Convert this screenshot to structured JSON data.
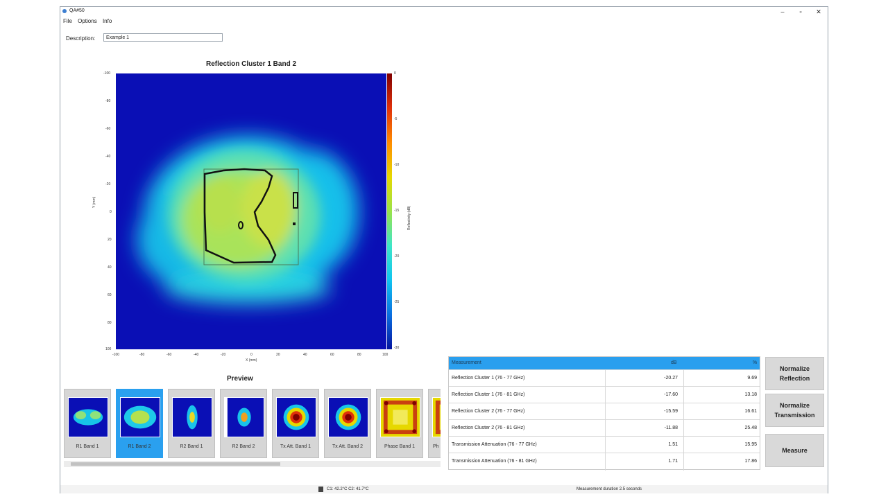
{
  "window": {
    "title": "QA#50",
    "controls": [
      "–",
      "▫",
      "✕"
    ]
  },
  "menu": [
    "File",
    "Options",
    "Info"
  ],
  "description": {
    "label": "Description:",
    "value": "Example 1"
  },
  "plot": {
    "title": "Reflection Cluster 1 Band 2",
    "x_ticks": [
      "-100",
      "-80",
      "-60",
      "-40",
      "-20",
      "0",
      "20",
      "40",
      "60",
      "80",
      "100"
    ],
    "y_ticks": [
      "-100",
      "-80",
      "-60",
      "-40",
      "-20",
      "0",
      "20",
      "40",
      "60",
      "80",
      "100"
    ],
    "xlabel": "X (mm)",
    "ylabel": "Y (mm)",
    "colorbar_ticks": [
      "0",
      "-5",
      "-10",
      "-15",
      "-20",
      "-25",
      "-30"
    ],
    "colorbar_label": "Reflectivity (dB)"
  },
  "preview": {
    "label": "Preview",
    "thumbnails": [
      {
        "label": "R1 Band 1",
        "active": false
      },
      {
        "label": "R1 Band 2",
        "active": true
      },
      {
        "label": "R2 Band 1",
        "active": false
      },
      {
        "label": "R2 Band 2",
        "active": false
      },
      {
        "label": "Tx Att. Band 1",
        "active": false
      },
      {
        "label": "Tx Att. Band 2",
        "active": false
      },
      {
        "label": "Phase Band 1",
        "active": false
      },
      {
        "label": "Ph",
        "active": false
      }
    ]
  },
  "table": {
    "headers": [
      "Measurement",
      "dB",
      "%"
    ],
    "rows": [
      [
        "Reflection Cluster 1 (76 - 77 GHz)",
        "-20.27",
        "9.69"
      ],
      [
        "Reflection Cluster 1 (76 - 81 GHz)",
        "-17.60",
        "13.18"
      ],
      [
        "Reflection Cluster 2 (76 - 77 GHz)",
        "-15.59",
        "16.61"
      ],
      [
        "Reflection Cluster 2 (76 - 81 GHz)",
        "-11.88",
        "25.48"
      ],
      [
        "Transmission Attenuation (76 - 77 GHz)",
        "1.51",
        "15.95"
      ],
      [
        "Transmission Attenuation (76 - 81 GHz)",
        "1.71",
        "17.86"
      ]
    ]
  },
  "buttons": {
    "normalize_reflection": "Normalize Reflection",
    "normalize_transmission": "Normalize Transmission",
    "measure": "Measure"
  },
  "status": {
    "temperature": "C1: 42.2°C C2: 41.7°C",
    "duration": "Measurement duration 2.5 seconds"
  }
}
